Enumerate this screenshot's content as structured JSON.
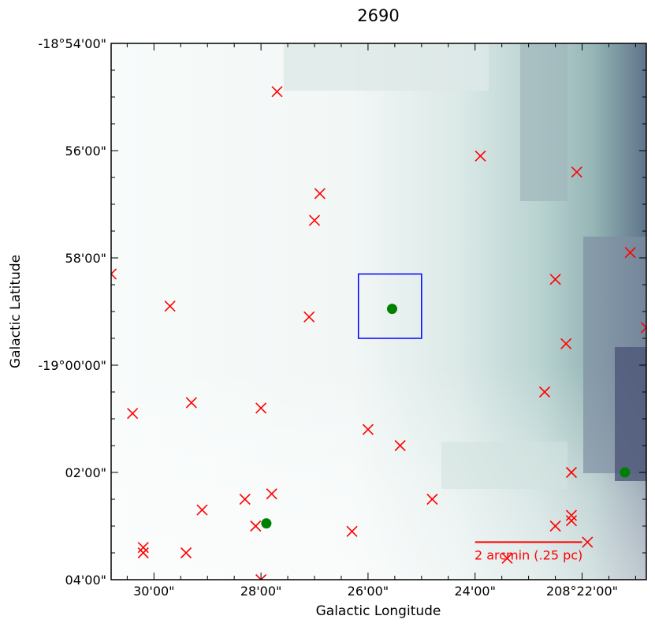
{
  "chart_data": {
    "type": "scatter",
    "title": "2690",
    "xlabel": "Galactic Longitude",
    "ylabel": "Galactic Latitude",
    "xlim_arcmin_rel": [
      -3.8,
      6.2
    ],
    "ylim_arcmin": [
      -54.0,
      -64.0
    ],
    "x_ticks": [
      {
        "value": -3.0,
        "label": "30'00\""
      },
      {
        "value": -1.0,
        "label": "28'00\""
      },
      {
        "value": 1.0,
        "label": "26'00\""
      },
      {
        "value": 3.0,
        "label": "24'00\""
      },
      {
        "value": 5.0,
        "label": "208°22'00\""
      }
    ],
    "y_ticks": [
      {
        "value": -54.0,
        "label": "-18°54'00\""
      },
      {
        "value": -56.0,
        "label": "56'00\""
      },
      {
        "value": -58.0,
        "label": "58'00\""
      },
      {
        "value": -60.0,
        "label": "-19°00'00\""
      },
      {
        "value": -62.0,
        "label": "02'00\""
      },
      {
        "value": -64.0,
        "label": "04'00\""
      }
    ],
    "box": {
      "x": [
        0.82,
        2.0
      ],
      "y": [
        -58.3,
        -59.5
      ]
    },
    "scalebar": {
      "x": [
        3.0,
        5.0
      ],
      "y": -63.3,
      "label": "2 arcmin (.25 pc)"
    },
    "series": [
      {
        "marker": "x",
        "color": "#ff0000",
        "points": [
          [
            -0.7,
            -54.9
          ],
          [
            3.1,
            -56.1
          ],
          [
            4.9,
            -56.4
          ],
          [
            0.1,
            -56.8
          ],
          [
            0.0,
            -57.3
          ],
          [
            -3.8,
            -58.3
          ],
          [
            6.2,
            -59.3
          ],
          [
            4.5,
            -58.4
          ],
          [
            5.9,
            -57.9
          ],
          [
            -2.7,
            -58.9
          ],
          [
            -0.1,
            -59.1
          ],
          [
            4.7,
            -59.6
          ],
          [
            4.3,
            -60.5
          ],
          [
            -3.4,
            -60.9
          ],
          [
            -2.3,
            -60.7
          ],
          [
            -1.0,
            -60.8
          ],
          [
            1.0,
            -61.2
          ],
          [
            1.6,
            -61.5
          ],
          [
            4.8,
            -62.0
          ],
          [
            2.2,
            -62.5
          ],
          [
            -2.1,
            -62.7
          ],
          [
            -1.3,
            -62.5
          ],
          [
            -0.8,
            -62.4
          ],
          [
            -1.1,
            -63.0
          ],
          [
            0.7,
            -63.1
          ],
          [
            4.5,
            -63.0
          ],
          [
            4.8,
            -62.8
          ],
          [
            4.8,
            -62.9
          ],
          [
            5.1,
            -63.3
          ],
          [
            -3.2,
            -63.4
          ],
          [
            -3.2,
            -63.5
          ],
          [
            -2.4,
            -63.5
          ],
          [
            3.6,
            -63.6
          ],
          [
            -1.0,
            -64.0
          ]
        ]
      },
      {
        "marker": "circle",
        "color": "#008000",
        "points": [
          [
            1.45,
            -58.95
          ],
          [
            -0.9,
            -62.95
          ],
          [
            5.8,
            -62.0
          ]
        ]
      }
    ]
  }
}
